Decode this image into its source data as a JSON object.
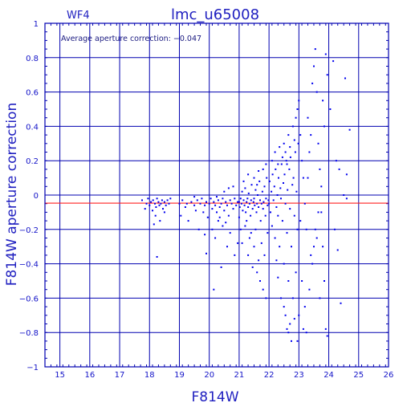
{
  "chart_data": {
    "type": "scatter",
    "title": "lmc_u65008",
    "subtitle": "WF4",
    "xlabel": "F814W",
    "ylabel": "F814W aperture correction",
    "annotation": "Average aperture correction: −0.047",
    "xlim": [
      14.5,
      26
    ],
    "ylim": [
      -1,
      1
    ],
    "x_ticks": [
      15,
      16,
      17,
      18,
      19,
      20,
      21,
      22,
      23,
      24,
      25,
      26
    ],
    "x_tick_labels": [
      "15",
      "16",
      "17",
      "18",
      "19",
      "20",
      "21",
      "22",
      "23",
      "24",
      "25",
      "26"
    ],
    "y_ticks": [
      -1,
      -0.8,
      -0.6,
      -0.4,
      -0.2,
      0,
      0.2,
      0.4,
      0.6,
      0.8,
      1
    ],
    "y_tick_labels": [
      "−1",
      "−0.8",
      "−0.6",
      "−0.4",
      "−0.2",
      "0",
      "0.2",
      "0.4",
      "0.6",
      "0.8",
      "1"
    ],
    "grid": true,
    "reference_line": {
      "y": -0.047,
      "color": "#ff2020"
    },
    "colors": {
      "points": "#0000ee",
      "axes": "#0000b0",
      "grid": "#0000b0"
    },
    "points": [
      [
        17.75,
        -0.03
      ],
      [
        17.85,
        -0.08
      ],
      [
        17.9,
        -0.05
      ],
      [
        17.95,
        -0.02
      ],
      [
        18.0,
        -0.06
      ],
      [
        18.05,
        -0.04
      ],
      [
        18.1,
        -0.09
      ],
      [
        18.12,
        -0.03
      ],
      [
        18.18,
        -0.05
      ],
      [
        18.22,
        -0.07
      ],
      [
        18.25,
        -0.02
      ],
      [
        18.3,
        -0.04
      ],
      [
        18.33,
        -0.06
      ],
      [
        18.38,
        -0.05
      ],
      [
        18.42,
        -0.03
      ],
      [
        18.45,
        -0.08
      ],
      [
        18.5,
        -0.04
      ],
      [
        18.55,
        -0.06
      ],
      [
        18.6,
        -0.03
      ],
      [
        18.65,
        -0.05
      ],
      [
        18.7,
        -0.02
      ],
      [
        18.2,
        -0.12
      ],
      [
        18.35,
        -0.15
      ],
      [
        18.15,
        -0.17
      ],
      [
        18.25,
        -0.36
      ],
      [
        18.5,
        -0.1
      ],
      [
        19.0,
        -0.05
      ],
      [
        19.05,
        -0.12
      ],
      [
        19.1,
        -0.03
      ],
      [
        19.2,
        -0.07
      ],
      [
        19.25,
        -0.05
      ],
      [
        19.3,
        -0.15
      ],
      [
        19.4,
        -0.04
      ],
      [
        19.5,
        -0.06
      ],
      [
        19.55,
        -0.09
      ],
      [
        19.6,
        -0.03
      ],
      [
        19.7,
        -0.05
      ],
      [
        19.75,
        -0.02
      ],
      [
        19.8,
        -0.1
      ],
      [
        19.85,
        -0.06
      ],
      [
        19.9,
        -0.04
      ],
      [
        19.95,
        -0.13
      ],
      [
        19.65,
        -0.2
      ],
      [
        19.85,
        -0.23
      ],
      [
        19.9,
        -0.34
      ],
      [
        19.5,
        -0.01
      ],
      [
        20.0,
        -0.05
      ],
      [
        20.05,
        -0.02
      ],
      [
        20.1,
        -0.08
      ],
      [
        20.15,
        -0.04
      ],
      [
        20.2,
        -0.06
      ],
      [
        20.25,
        -0.1
      ],
      [
        20.3,
        -0.03
      ],
      [
        20.35,
        -0.07
      ],
      [
        20.4,
        -0.05
      ],
      [
        20.45,
        -0.02
      ],
      [
        20.5,
        -0.09
      ],
      [
        20.55,
        -0.04
      ],
      [
        20.6,
        -0.06
      ],
      [
        20.65,
        -0.12
      ],
      [
        20.7,
        -0.03
      ],
      [
        20.75,
        -0.05
      ],
      [
        20.8,
        -0.08
      ],
      [
        20.85,
        -0.02
      ],
      [
        20.9,
        -0.06
      ],
      [
        20.95,
        -0.04
      ],
      [
        20.1,
        -0.2
      ],
      [
        20.2,
        -0.25
      ],
      [
        20.3,
        -0.15
      ],
      [
        20.45,
        -0.18
      ],
      [
        20.6,
        -0.3
      ],
      [
        20.7,
        -0.22
      ],
      [
        20.85,
        -0.35
      ],
      [
        20.95,
        -0.28
      ],
      [
        20.15,
        -0.55
      ],
      [
        20.4,
        -0.42
      ],
      [
        20.5,
        0.02
      ],
      [
        20.8,
        0.05
      ],
      [
        20.65,
        0.04
      ],
      [
        20.25,
        -0.01
      ],
      [
        20.35,
        -0.13
      ],
      [
        20.55,
        -0.16
      ],
      [
        21.0,
        -0.04
      ],
      [
        21.02,
        -0.07
      ],
      [
        21.05,
        -0.02
      ],
      [
        21.08,
        -0.05
      ],
      [
        21.1,
        0.02
      ],
      [
        21.12,
        -0.09
      ],
      [
        21.15,
        -0.03
      ],
      [
        21.18,
        -0.06
      ],
      [
        21.2,
        0.04
      ],
      [
        21.22,
        -0.1
      ],
      [
        21.25,
        -0.04
      ],
      [
        21.28,
        -0.02
      ],
      [
        21.3,
        -0.07
      ],
      [
        21.32,
        0.01
      ],
      [
        21.35,
        -0.05
      ],
      [
        21.38,
        -0.12
      ],
      [
        21.4,
        -0.03
      ],
      [
        21.42,
        0.06
      ],
      [
        21.45,
        -0.08
      ],
      [
        21.48,
        -0.04
      ],
      [
        21.5,
        -0.02
      ],
      [
        21.52,
        -0.06
      ],
      [
        21.55,
        0.03
      ],
      [
        21.58,
        -0.1
      ],
      [
        21.6,
        -0.05
      ],
      [
        21.62,
        0.0
      ],
      [
        21.65,
        -0.07
      ],
      [
        21.68,
        0.08
      ],
      [
        21.7,
        -0.03
      ],
      [
        21.72,
        -0.15
      ],
      [
        21.75,
        -0.05
      ],
      [
        21.78,
        0.02
      ],
      [
        21.8,
        -0.08
      ],
      [
        21.82,
        -0.04
      ],
      [
        21.85,
        0.05
      ],
      [
        21.88,
        -0.12
      ],
      [
        21.9,
        -0.02
      ],
      [
        21.92,
        0.1
      ],
      [
        21.95,
        -0.06
      ],
      [
        21.98,
        -0.03
      ],
      [
        21.05,
        -0.2
      ],
      [
        21.1,
        -0.28
      ],
      [
        21.2,
        -0.18
      ],
      [
        21.3,
        -0.35
      ],
      [
        21.35,
        -0.25
      ],
      [
        21.45,
        -0.42
      ],
      [
        21.5,
        -0.3
      ],
      [
        21.55,
        -0.2
      ],
      [
        21.6,
        -0.45
      ],
      [
        21.65,
        -0.38
      ],
      [
        21.7,
        -0.5
      ],
      [
        21.75,
        -0.28
      ],
      [
        21.8,
        -0.55
      ],
      [
        21.85,
        -0.35
      ],
      [
        21.9,
        -0.6
      ],
      [
        21.95,
        -0.22
      ],
      [
        21.25,
        -0.15
      ],
      [
        21.4,
        -0.22
      ],
      [
        21.15,
        0.08
      ],
      [
        21.3,
        0.12
      ],
      [
        21.5,
        0.1
      ],
      [
        21.65,
        0.14
      ],
      [
        21.8,
        0.15
      ],
      [
        21.9,
        0.18
      ],
      [
        21.6,
        0.06
      ],
      [
        21.0,
        -0.13
      ],
      [
        22.0,
        -0.05
      ],
      [
        22.02,
        0.08
      ],
      [
        22.05,
        -0.1
      ],
      [
        22.08,
        0.02
      ],
      [
        22.1,
        -0.18
      ],
      [
        22.12,
        0.12
      ],
      [
        22.15,
        -0.03
      ],
      [
        22.18,
        0.05
      ],
      [
        22.2,
        -0.25
      ],
      [
        22.22,
        0.15
      ],
      [
        22.25,
        -0.07
      ],
      [
        22.28,
        0.0
      ],
      [
        22.3,
        -0.12
      ],
      [
        22.32,
        0.1
      ],
      [
        22.35,
        -0.3
      ],
      [
        22.38,
        0.04
      ],
      [
        22.4,
        -0.02
      ],
      [
        22.42,
        0.18
      ],
      [
        22.45,
        -0.15
      ],
      [
        22.48,
        0.07
      ],
      [
        22.5,
        -0.4
      ],
      [
        22.52,
        0.12
      ],
      [
        22.55,
        -0.05
      ],
      [
        22.58,
        0.2
      ],
      [
        22.6,
        -0.22
      ],
      [
        22.62,
        0.03
      ],
      [
        22.65,
        -0.5
      ],
      [
        22.68,
        0.15
      ],
      [
        22.7,
        -0.08
      ],
      [
        22.72,
        0.22
      ],
      [
        22.75,
        -0.3
      ],
      [
        22.78,
        0.06
      ],
      [
        22.8,
        -0.6
      ],
      [
        22.82,
        0.1
      ],
      [
        22.85,
        -0.12
      ],
      [
        22.88,
        0.25
      ],
      [
        22.9,
        -0.45
      ],
      [
        22.92,
        0.02
      ],
      [
        22.95,
        -0.2
      ],
      [
        22.98,
        0.3
      ],
      [
        22.1,
        0.2
      ],
      [
        22.2,
        0.25
      ],
      [
        22.3,
        0.18
      ],
      [
        22.35,
        0.28
      ],
      [
        22.45,
        0.22
      ],
      [
        22.5,
        0.3
      ],
      [
        22.55,
        0.25
      ],
      [
        22.65,
        0.35
      ],
      [
        22.7,
        0.28
      ],
      [
        22.8,
        0.4
      ],
      [
        22.85,
        0.32
      ],
      [
        22.9,
        0.45
      ],
      [
        22.95,
        0.5
      ],
      [
        22.6,
        0.18
      ],
      [
        22.4,
        -0.6
      ],
      [
        22.5,
        -0.65
      ],
      [
        22.55,
        -0.7
      ],
      [
        22.6,
        -0.78
      ],
      [
        22.65,
        -0.8
      ],
      [
        22.7,
        -0.75
      ],
      [
        22.75,
        -0.85
      ],
      [
        22.85,
        -0.72
      ],
      [
        22.95,
        -0.85
      ],
      [
        22.3,
        -0.48
      ],
      [
        22.25,
        -0.38
      ],
      [
        23.0,
        0.55
      ],
      [
        23.05,
        0.35
      ],
      [
        23.1,
        0.2
      ],
      [
        23.15,
        0.1
      ],
      [
        23.2,
        -0.05
      ],
      [
        23.25,
        -0.2
      ],
      [
        23.3,
        0.45
      ],
      [
        23.35,
        0.25
      ],
      [
        23.4,
        -0.35
      ],
      [
        23.45,
        0.65
      ],
      [
        23.5,
        0.75
      ],
      [
        23.55,
        0.85
      ],
      [
        23.6,
        0.6
      ],
      [
        23.65,
        0.3
      ],
      [
        23.7,
        0.15
      ],
      [
        23.75,
        -0.1
      ],
      [
        23.8,
        -0.3
      ],
      [
        23.85,
        -0.5
      ],
      [
        23.9,
        0.82
      ],
      [
        23.95,
        0.7
      ],
      [
        23.1,
        -0.5
      ],
      [
        23.2,
        -0.65
      ],
      [
        23.25,
        -0.8
      ],
      [
        23.35,
        -0.55
      ],
      [
        23.45,
        -0.4
      ],
      [
        23.5,
        -0.3
      ],
      [
        23.55,
        -0.2
      ],
      [
        23.65,
        -0.1
      ],
      [
        23.75,
        0.05
      ],
      [
        23.85,
        0.4
      ],
      [
        23.0,
        -0.7
      ],
      [
        23.15,
        -0.78
      ],
      [
        23.3,
        0.1
      ],
      [
        23.4,
        0.35
      ],
      [
        23.6,
        -0.25
      ],
      [
        23.7,
        -0.6
      ],
      [
        23.8,
        0.55
      ],
      [
        23.9,
        -0.78
      ],
      [
        23.95,
        -0.82
      ],
      [
        23.05,
        -0.15
      ],
      [
        24.05,
        0.5
      ],
      [
        24.15,
        0.78
      ],
      [
        24.25,
        0.2
      ],
      [
        24.4,
        -0.63
      ],
      [
        24.55,
        0.68
      ],
      [
        24.6,
        0.12
      ],
      [
        24.7,
        0.38
      ],
      [
        24.5,
        0.0
      ],
      [
        24.2,
        -0.2
      ],
      [
        24.35,
        0.15
      ],
      [
        24.6,
        -0.02
      ],
      [
        24.3,
        -0.32
      ]
    ]
  }
}
